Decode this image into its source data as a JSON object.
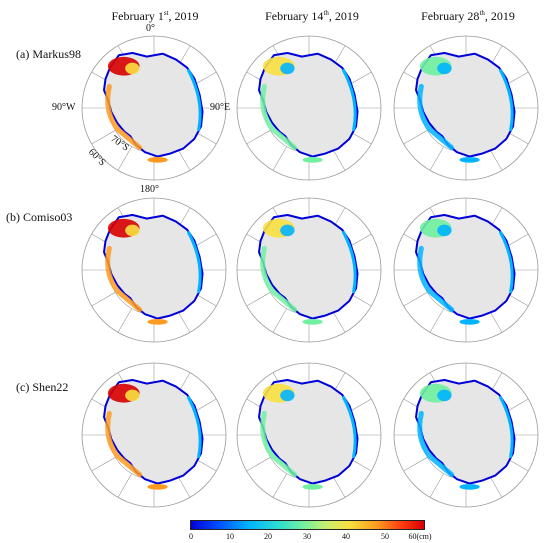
{
  "column_titles": [
    {
      "prefix": "February 1",
      "sup": "st",
      "suffix": ", 2019"
    },
    {
      "prefix": "February 14",
      "sup": "th",
      "suffix": ", 2019"
    },
    {
      "prefix": "February 28",
      "sup": "th",
      "suffix": ", 2019"
    }
  ],
  "row_labels": [
    "(a) Markus98",
    "(b) Comiso03",
    "(c) Shen22"
  ],
  "map_annotations": {
    "top": "0°",
    "left": "90°W",
    "right": "90°E",
    "bottom": "180°",
    "lat_70": "70°S",
    "lat_60": "60°S"
  },
  "colorbar": {
    "ticks": [
      "0",
      "10",
      "20",
      "30",
      "40",
      "50",
      "60(cm)"
    ],
    "range": [
      0,
      60
    ],
    "colors": [
      "#0000d8",
      "#00b4ff",
      "#70f0a0",
      "#f8e040",
      "#ff9a20",
      "#d80000"
    ]
  },
  "colors": {
    "land": "#e6e6e6",
    "grid": "#9a9a9a"
  }
}
